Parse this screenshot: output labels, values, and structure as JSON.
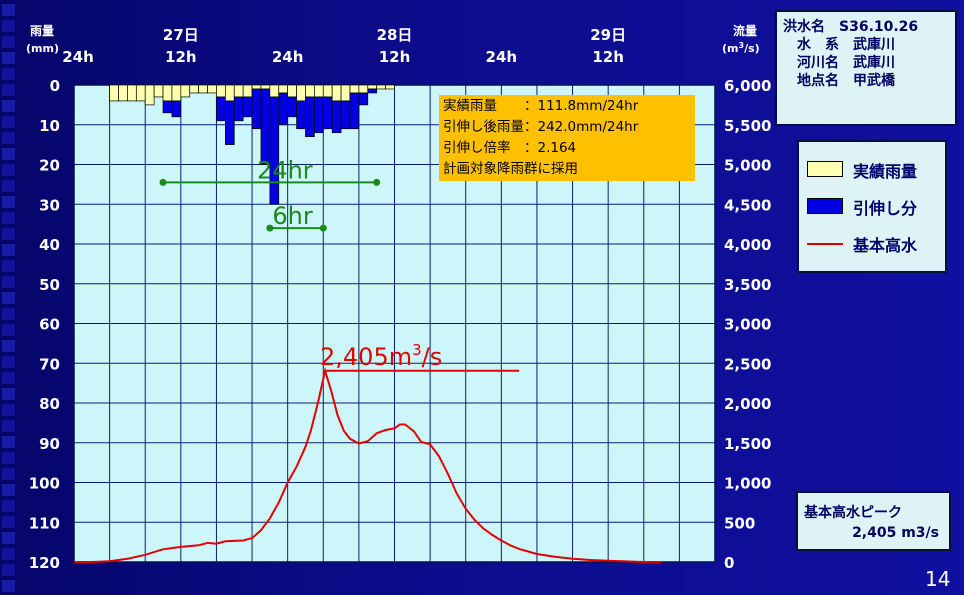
{
  "slide_number": "14",
  "info": {
    "rows": [
      {
        "label": "洪水名",
        "value": "S36.10.26"
      },
      {
        "label": "水　系",
        "value": "武庫川"
      },
      {
        "label": "河川名",
        "value": "武庫川"
      },
      {
        "label": "地点名",
        "value": "甲武橋"
      }
    ]
  },
  "legend": {
    "items": [
      {
        "label": "実績雨量",
        "kind": "box",
        "color": "#ffffb0"
      },
      {
        "label": "引伸し分",
        "kind": "box",
        "color": "#0000e0"
      },
      {
        "label": "基本高水",
        "kind": "line",
        "color": "#e00000"
      }
    ]
  },
  "peak_box": {
    "title": "基本高水ピーク",
    "value": "2,405 m3/s"
  },
  "chart_data": {
    "type": "bar+line",
    "left_axis": {
      "title": "雨量",
      "unit": "(mm)",
      "range": [
        0,
        120
      ],
      "inverted": true,
      "ticks": [
        "0",
        "10",
        "20",
        "30",
        "40",
        "50",
        "60",
        "70",
        "80",
        "90",
        "100",
        "110",
        "120"
      ]
    },
    "right_axis": {
      "title": "流量",
      "unit_prefix": "(m",
      "unit_sup": "3",
      "unit_suffix": "/s)",
      "range": [
        0,
        6000
      ],
      "ticks": [
        "0",
        "500",
        "1,000",
        "1,500",
        "2,000",
        "2,500",
        "3,000",
        "3,500",
        "4,000",
        "4,500",
        "5,000",
        "5,500",
        "6,000"
      ]
    },
    "x_axis": {
      "hours_range": [
        0,
        72
      ],
      "tick_labels": [
        {
          "hour": 0,
          "label": "24h"
        },
        {
          "hour": 12,
          "label": "12h"
        },
        {
          "hour": 24,
          "label": "24h"
        },
        {
          "hour": 36,
          "label": "12h"
        },
        {
          "hour": 48,
          "label": "24h"
        },
        {
          "hour": 60,
          "label": "12h"
        }
      ],
      "day_labels": [
        {
          "hour": 12,
          "label": "27日"
        },
        {
          "hour": 36,
          "label": "28日"
        },
        {
          "hour": 60,
          "label": "29日"
        }
      ]
    },
    "rain_bars": {
      "start_hour": 4,
      "width_hours": 1,
      "actual": [
        4,
        4,
        4,
        4,
        5,
        3,
        4,
        4,
        3,
        2,
        2,
        2,
        3,
        4,
        3,
        3,
        1,
        1,
        3,
        2,
        3,
        4,
        3,
        3,
        3,
        4,
        4,
        2,
        2,
        1,
        1,
        1,
        0,
        0
      ],
      "stretch": [
        0,
        0,
        0,
        0,
        0,
        0,
        3,
        4,
        0,
        0,
        0,
        0,
        6,
        11,
        6,
        5,
        10,
        19,
        27,
        8,
        5,
        7,
        10,
        9,
        8,
        8,
        7,
        9,
        3,
        1,
        0,
        0,
        0,
        0
      ]
    },
    "series": [
      {
        "name": "基本高水",
        "points": [
          [
            0,
            0
          ],
          [
            2,
            0
          ],
          [
            4,
            10
          ],
          [
            6,
            40
          ],
          [
            8,
            90
          ],
          [
            10,
            160
          ],
          [
            12,
            190
          ],
          [
            14,
            210
          ],
          [
            15,
            240
          ],
          [
            16,
            230
          ],
          [
            17,
            260
          ],
          [
            19,
            270
          ],
          [
            20,
            300
          ],
          [
            21,
            400
          ],
          [
            22,
            550
          ],
          [
            23,
            750
          ],
          [
            24,
            1000
          ],
          [
            25,
            1200
          ],
          [
            26,
            1450
          ],
          [
            26.6,
            1650
          ],
          [
            27.4,
            2000
          ],
          [
            28.2,
            2405
          ],
          [
            28.9,
            2150
          ],
          [
            29.6,
            1850
          ],
          [
            30.3,
            1650
          ],
          [
            31,
            1550
          ],
          [
            32,
            1490
          ],
          [
            33,
            1520
          ],
          [
            34,
            1620
          ],
          [
            35,
            1660
          ],
          [
            36,
            1680
          ],
          [
            36.6,
            1730
          ],
          [
            37.2,
            1730
          ],
          [
            38.2,
            1640
          ],
          [
            39,
            1510
          ],
          [
            40,
            1480
          ],
          [
            41,
            1330
          ],
          [
            42,
            1110
          ],
          [
            43,
            860
          ],
          [
            44,
            670
          ],
          [
            45,
            530
          ],
          [
            46,
            420
          ],
          [
            47,
            340
          ],
          [
            48,
            270
          ],
          [
            49,
            210
          ],
          [
            50,
            165
          ],
          [
            52,
            100
          ],
          [
            54,
            65
          ],
          [
            56,
            40
          ],
          [
            58,
            25
          ],
          [
            60,
            15
          ],
          [
            62,
            8
          ],
          [
            64,
            0
          ],
          [
            66,
            0
          ]
        ]
      }
    ],
    "annotations": [
      {
        "text": "24hr",
        "from_hour": 10,
        "to_hour": 34,
        "rain_level": 24.5,
        "label_above": true
      },
      {
        "text": "6hr",
        "from_hour": 22,
        "to_hour": 28,
        "rain_level": 36,
        "label_above": true
      },
      {
        "text": "2,405m",
        "sup": "3",
        "suffix": "/s",
        "flow": 2405,
        "line_to_hour": 50
      }
    ],
    "note_box": {
      "lines": [
        "実績雨量　　：111.8mm/24hr",
        "引伸し後雨量：242.0mm/24hr",
        "引伸し倍率　：2.164",
        "計画対象降雨群に採用"
      ]
    }
  }
}
